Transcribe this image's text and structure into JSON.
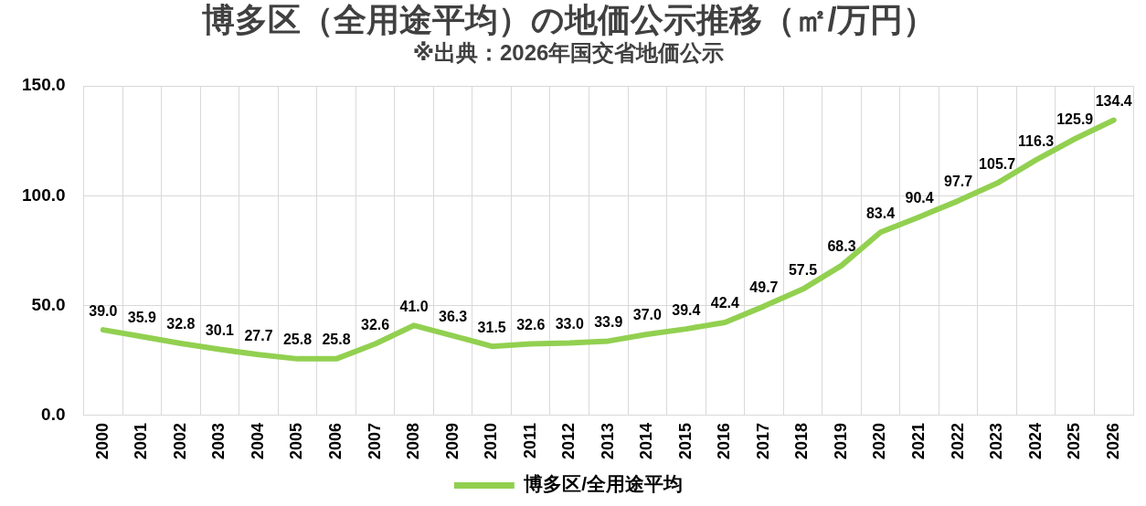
{
  "chart_data": {
    "type": "line",
    "title": "博多区（全用途平均）の地価公示推移（㎡/万円）",
    "subtitle": "※出典：2026年国交省地価公示",
    "categories": [
      "2000",
      "2001",
      "2002",
      "2003",
      "2004",
      "2005",
      "2006",
      "2007",
      "2008",
      "2009",
      "2010",
      "2011",
      "2012",
      "2013",
      "2014",
      "2015",
      "2016",
      "2017",
      "2018",
      "2019",
      "2020",
      "2021",
      "2022",
      "2023",
      "2024",
      "2025",
      "2026"
    ],
    "series": [
      {
        "name": "博多区/全用途平均",
        "color": "#92d050",
        "values": [
          39.0,
          35.9,
          32.8,
          30.1,
          27.7,
          25.8,
          25.8,
          32.6,
          41.0,
          36.3,
          31.5,
          32.6,
          33.0,
          33.9,
          37.0,
          39.4,
          42.4,
          49.7,
          57.5,
          68.3,
          83.4,
          90.4,
          97.7,
          105.7,
          116.3,
          125.9,
          134.4
        ],
        "value_labels": [
          "39.0",
          "35.9",
          "32.8",
          "30.1",
          "27.7",
          "25.8",
          "25.8",
          "32.6",
          "41.0",
          "36.3",
          "31.5",
          "32.6",
          "33.0",
          "33.9",
          "37.0",
          "39.4",
          "42.4",
          "49.7",
          "57.5",
          "68.3",
          "83.4",
          "90.4",
          "97.7",
          "105.7",
          "116.3",
          "125.9",
          "134.4"
        ]
      }
    ],
    "ylim": [
      0,
      150
    ],
    "yticks": [
      {
        "value": 0,
        "label": "0.0"
      },
      {
        "value": 50,
        "label": "50.0"
      },
      {
        "value": 100,
        "label": "100.0"
      },
      {
        "value": 150,
        "label": "150.0"
      }
    ],
    "grid": true,
    "legend": "bottom",
    "marker": "none",
    "line_style": "solid"
  }
}
